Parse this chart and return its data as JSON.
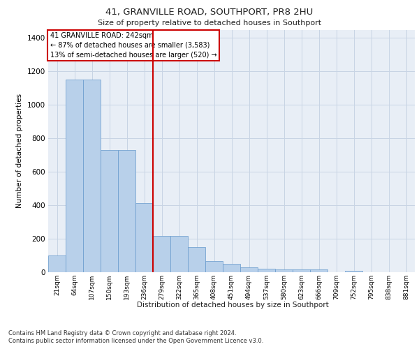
{
  "title1": "41, GRANVILLE ROAD, SOUTHPORT, PR8 2HU",
  "title2": "Size of property relative to detached houses in Southport",
  "xlabel": "Distribution of detached houses by size in Southport",
  "ylabel": "Number of detached properties",
  "categories": [
    "21sqm",
    "64sqm",
    "107sqm",
    "150sqm",
    "193sqm",
    "236sqm",
    "279sqm",
    "322sqm",
    "365sqm",
    "408sqm",
    "451sqm",
    "494sqm",
    "537sqm",
    "580sqm",
    "623sqm",
    "666sqm",
    "709sqm",
    "752sqm",
    "795sqm",
    "838sqm",
    "881sqm"
  ],
  "values": [
    100,
    1150,
    1150,
    730,
    730,
    415,
    215,
    215,
    150,
    65,
    48,
    30,
    20,
    15,
    15,
    15,
    0,
    10,
    0,
    0,
    0
  ],
  "bar_color": "#b8d0ea",
  "bar_edge_color": "#6699cc",
  "grid_color": "#c8d4e4",
  "background_color": "#e8eef6",
  "redline_x": 5.5,
  "annotation_title": "41 GRANVILLE ROAD: 242sqm",
  "annotation_line1": "← 87% of detached houses are smaller (3,583)",
  "annotation_line2": "13% of semi-detached houses are larger (520) →",
  "annotation_box_color": "#ffffff",
  "annotation_box_edge": "#cc0000",
  "redline_color": "#cc0000",
  "ylim": [
    0,
    1450
  ],
  "yticks": [
    0,
    200,
    400,
    600,
    800,
    1000,
    1200,
    1400
  ],
  "footnote1": "Contains HM Land Registry data © Crown copyright and database right 2024.",
  "footnote2": "Contains public sector information licensed under the Open Government Licence v3.0."
}
